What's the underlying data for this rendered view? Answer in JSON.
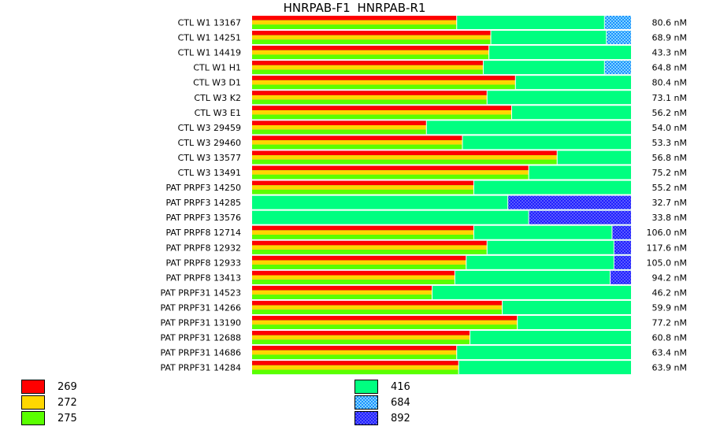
{
  "chart_data": {
    "type": "bar",
    "title": "HNRPAB-F1  HNRPAB-R1",
    "unit_suffix": " nM",
    "colors": {
      "269": "#ff0000",
      "272": "#ffd700",
      "275": "#5aff00",
      "416": "#00ff80",
      "684": "#1e90ff",
      "892": "#2020ff"
    },
    "rows": [
      {
        "label": "CTL W1 13167",
        "value": "80.6",
        "tri": 54,
        "hatch": "684",
        "hatch_pct": 7
      },
      {
        "label": "CTL W1 14251",
        "value": "68.9",
        "tri": 63,
        "hatch": "684",
        "hatch_pct": 6.5
      },
      {
        "label": "CTL W1 14419",
        "value": "43.3",
        "tri": 62.5,
        "hatch": null,
        "hatch_pct": 0
      },
      {
        "label": "CTL W1 H1",
        "value": "64.8",
        "tri": 61,
        "hatch": "684",
        "hatch_pct": 7
      },
      {
        "label": "CTL W3 D1",
        "value": "80.4",
        "tri": 69.5,
        "hatch": null,
        "hatch_pct": 0
      },
      {
        "label": "CTL W3 K2",
        "value": "73.1",
        "tri": 62,
        "hatch": null,
        "hatch_pct": 0
      },
      {
        "label": "CTL W3 E1",
        "value": "56.2",
        "tri": 68.5,
        "hatch": null,
        "hatch_pct": 0
      },
      {
        "label": "CTL W3 29459",
        "value": "54.0",
        "tri": 46,
        "hatch": null,
        "hatch_pct": 0
      },
      {
        "label": "CTL W3 29460",
        "value": "53.3",
        "tri": 55.5,
        "hatch": null,
        "hatch_pct": 0
      },
      {
        "label": "CTL W3 13577",
        "value": "56.8",
        "tri": 80.5,
        "hatch": null,
        "hatch_pct": 0
      },
      {
        "label": "CTL W3 13491",
        "value": "75.2",
        "tri": 73,
        "hatch": null,
        "hatch_pct": 0
      },
      {
        "label": "PAT PRPF3 14250",
        "value": "55.2",
        "tri": 58.5,
        "hatch": null,
        "hatch_pct": 0
      },
      {
        "label": "PAT PRPF3 14285",
        "value": "32.7",
        "tri": 0,
        "hatch": "892",
        "hatch_pct": 32.5
      },
      {
        "label": "PAT PRPF3 13576",
        "value": "33.8",
        "tri": 0,
        "hatch": "892",
        "hatch_pct": 27
      },
      {
        "label": "PAT PRPF8 12714",
        "value": "106.0",
        "tri": 58.5,
        "hatch": "892",
        "hatch_pct": 5
      },
      {
        "label": "PAT PRPF8 12932",
        "value": "117.6",
        "tri": 62,
        "hatch": "892",
        "hatch_pct": 4.5
      },
      {
        "label": "PAT PRPF8 12933",
        "value": "105.0",
        "tri": 56.5,
        "hatch": "892",
        "hatch_pct": 4.5
      },
      {
        "label": "PAT PRPF8 13413",
        "value": "94.2",
        "tri": 53.5,
        "hatch": "892",
        "hatch_pct": 5.5
      },
      {
        "label": "PAT PRPF31 14523",
        "value": "46.2",
        "tri": 47.5,
        "hatch": null,
        "hatch_pct": 0
      },
      {
        "label": "PAT PRPF31 14266",
        "value": "59.9",
        "tri": 66,
        "hatch": null,
        "hatch_pct": 0
      },
      {
        "label": "PAT PRPF31 13190",
        "value": "77.2",
        "tri": 70,
        "hatch": null,
        "hatch_pct": 0
      },
      {
        "label": "PAT PRPF31 12688",
        "value": "60.8",
        "tri": 57.5,
        "hatch": null,
        "hatch_pct": 0
      },
      {
        "label": "PAT PRPF31 14686",
        "value": "63.4",
        "tri": 54,
        "hatch": null,
        "hatch_pct": 0
      },
      {
        "label": "PAT PRPF31 14284",
        "value": "63.9",
        "tri": 54.5,
        "hatch": null,
        "hatch_pct": 0
      }
    ],
    "legend_left": [
      {
        "key": "269",
        "label": "269"
      },
      {
        "key": "272",
        "label": "272"
      },
      {
        "key": "275",
        "label": "275"
      }
    ],
    "legend_right": [
      {
        "key": "416",
        "label": "416"
      },
      {
        "key": "684",
        "label": "684"
      },
      {
        "key": "892",
        "label": "892"
      }
    ]
  }
}
